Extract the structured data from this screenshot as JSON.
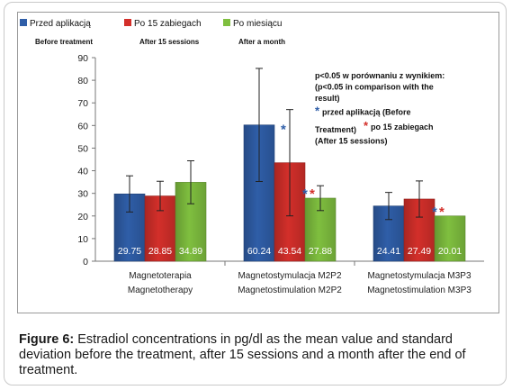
{
  "chart_data": {
    "type": "bar",
    "categories": [
      {
        "label_pl": "Magnetoterapia",
        "label_en": "Magnetotherapy"
      },
      {
        "label_pl": "Magnetostymulacja M2P2",
        "label_en": "Magnetostimulation M2P2"
      },
      {
        "label_pl": "Magnetostymulacja M3P3",
        "label_en": "Magnetostimulation M3P3"
      }
    ],
    "series": [
      {
        "name": "Przed aplikacją",
        "name_en": "Before treatment",
        "color": "#2f5ea8",
        "values": [
          29.75,
          60.24,
          24.41
        ],
        "errors": [
          8.0,
          25.0,
          6.0
        ]
      },
      {
        "name": "Po 15 zabiegach",
        "name_en": "After 15 sessions",
        "color": "#d32f2a",
        "values": [
          28.85,
          43.54,
          27.49
        ],
        "errors": [
          6.5,
          23.5,
          8.0
        ]
      },
      {
        "name": "Po miesiącu",
        "name_en": "After a month",
        "color": "#7fbf3f",
        "values": [
          34.89,
          27.88,
          20.01
        ],
        "errors": [
          9.5,
          5.5,
          0.0
        ]
      }
    ],
    "value_labels": [
      [
        "29.75",
        "28.85",
        "34.89"
      ],
      [
        "60.24",
        "43.54",
        "27.88"
      ],
      [
        "24.41",
        "27.49",
        "20.01"
      ]
    ],
    "yticks": [
      0,
      10,
      20,
      30,
      40,
      50,
      60,
      70,
      80,
      90
    ],
    "ylim": [
      0,
      90
    ],
    "grid": false,
    "legend_position": "top",
    "significance_markers": [
      {
        "category": 1,
        "series": 0,
        "symbol": "*",
        "color": "#2f5ea8"
      },
      {
        "category": 1,
        "series": 2,
        "symbol": "*",
        "color": "#2f5ea8"
      },
      {
        "category": 1,
        "series": 2,
        "symbol": "*",
        "color": "#d32f2a"
      },
      {
        "category": 2,
        "series": 2,
        "symbol": "*",
        "color": "#2f5ea8"
      },
      {
        "category": 2,
        "series": 2,
        "symbol": "*",
        "color": "#d32f2a"
      }
    ],
    "annotation": {
      "lines": [
        "p<0.05  w porównaniu z wynikiem:",
        "(p<0.05 in comparison with the",
        "result)"
      ],
      "line4_marker": "*",
      "line4_text": "przed aplikacją  (Before",
      "line5_text": "Treatment)",
      "line5_marker": "*",
      "line5_rest": "po 15 zabiegach",
      "line6_text": "(After 15 sessions)"
    }
  },
  "caption": {
    "label": "Figure 6:",
    "text": " Estradiol concentrations in pg/dl as the mean value and standard deviation before the treatment, after 15 sessions and a month after the end of treatment."
  }
}
